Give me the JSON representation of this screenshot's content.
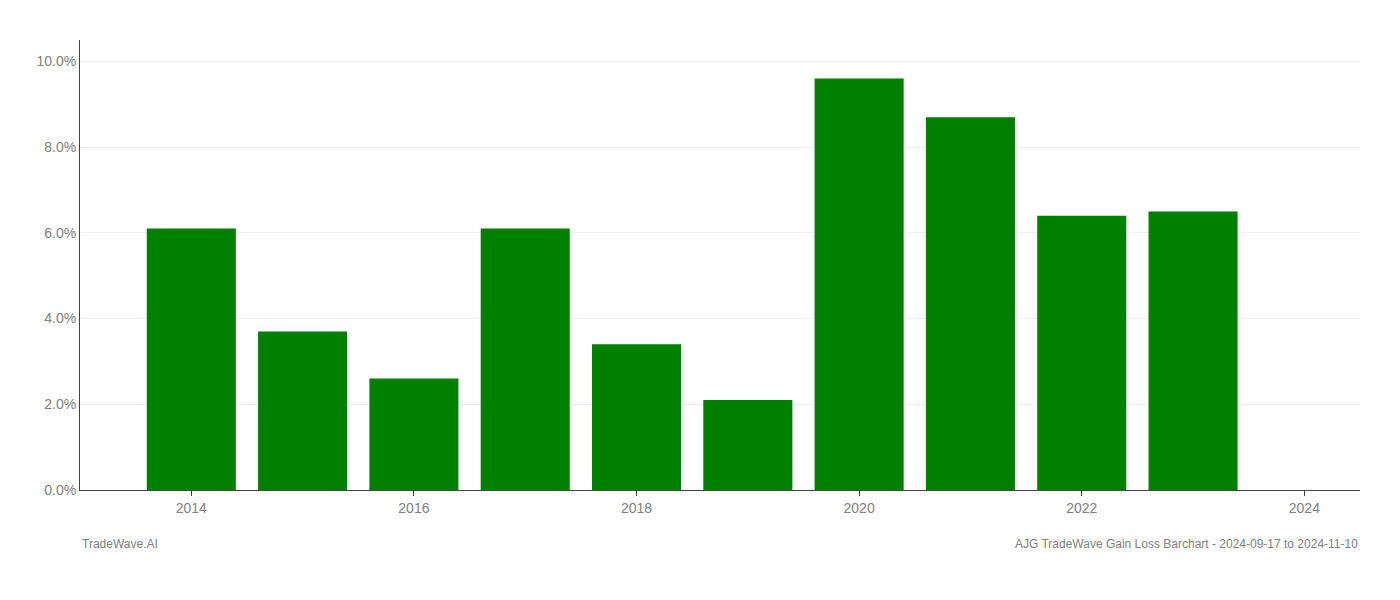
{
  "chart_data": {
    "type": "bar",
    "x": [
      2014,
      2015,
      2016,
      2017,
      2018,
      2019,
      2020,
      2021,
      2022,
      2023
    ],
    "values": [
      0.061,
      0.037,
      0.026,
      0.061,
      0.034,
      0.021,
      0.096,
      0.087,
      0.064,
      0.065
    ],
    "color": "#008000",
    "xlim": [
      2013.0,
      2024.5
    ],
    "xticks": [
      2014,
      2016,
      2018,
      2020,
      2022,
      2024
    ],
    "ylim": [
      0,
      0.105
    ],
    "yticks": [
      {
        "value": 0.0,
        "label": "0.0%"
      },
      {
        "value": 0.02,
        "label": "2.0%"
      },
      {
        "value": 0.04,
        "label": "4.0%"
      },
      {
        "value": 0.06,
        "label": "6.0%"
      },
      {
        "value": 0.08,
        "label": "8.0%"
      },
      {
        "value": 0.1,
        "label": "10.0%"
      }
    ],
    "grid": true,
    "annotations": [
      "TradeWave.AI",
      "AJG TradeWave Gain Loss Barchart - 2024-09-17 to 2024-11-10"
    ]
  }
}
